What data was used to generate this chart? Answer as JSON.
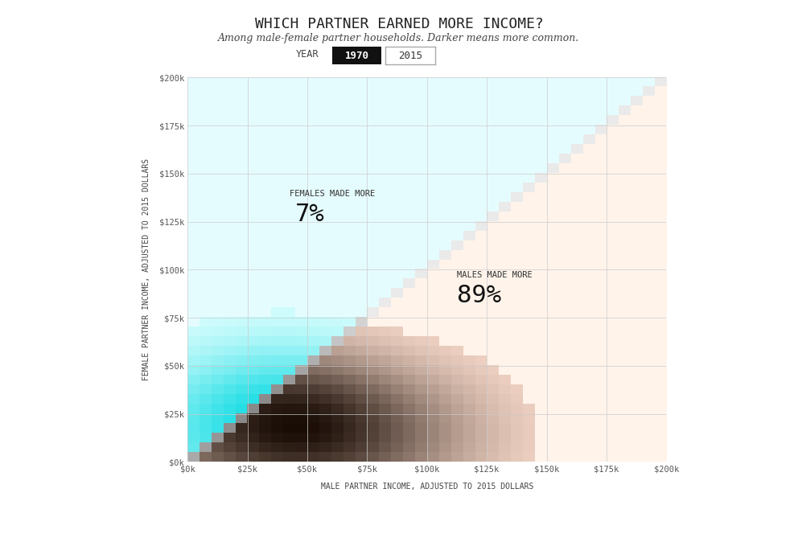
{
  "title": "WHICH PARTNER EARNED MORE INCOME?",
  "subtitle": "Among male-female partner households. Darker means more common.",
  "year_label": "YEAR",
  "year_1970": "1970",
  "year_2015": "2015",
  "xlabel": "MALE PARTNER INCOME, ADJUSTED TO 2015 DOLLARS",
  "ylabel": "FEMALE PARTNER INCOME, ADJUSTED TO 2015 DOLLARS",
  "females_label": "FEMALES MADE MORE",
  "females_pct": "7%",
  "males_label": "MALES MADE MORE",
  "males_pct": "89%",
  "tick_labels": [
    "$0k",
    "$25k",
    "$50k",
    "$75k",
    "$100k",
    "$125k",
    "$150k",
    "$175k",
    "$200k"
  ],
  "n_bins": 40,
  "max_val": 200000,
  "bg_color": "#ffffff",
  "grid_color": "#cccccc"
}
